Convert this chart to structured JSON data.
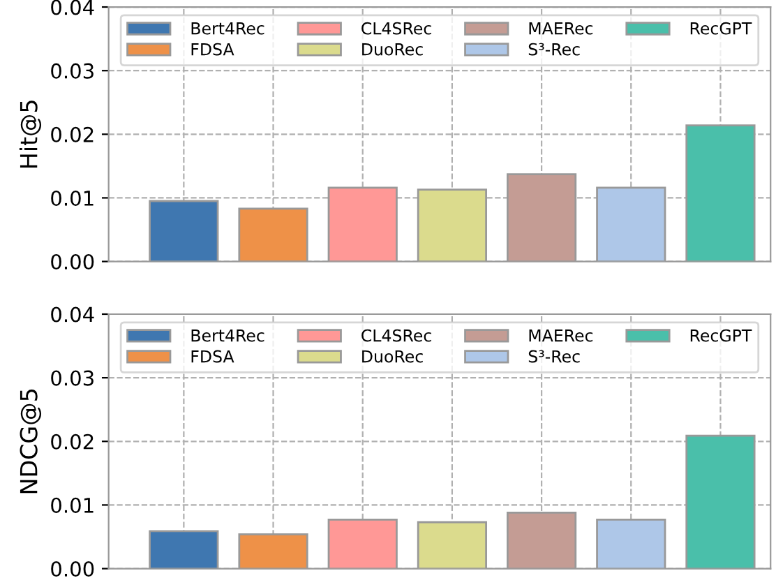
{
  "chart_data": [
    {
      "type": "bar",
      "ylabel": "Hit@5",
      "categories": [
        null,
        null,
        null,
        null,
        null,
        null,
        null
      ],
      "series": [
        {
          "name": "Bert4Rec",
          "color": "#3f77b0",
          "values": [
            0.0095,
            null,
            null,
            null,
            null,
            null,
            null
          ]
        },
        {
          "name": "FDSA",
          "color": "#ee9148",
          "values": [
            null,
            0.0083,
            null,
            null,
            null,
            null,
            null
          ]
        },
        {
          "name": "CL4SRec",
          "color": "#ff9896",
          "values": [
            null,
            null,
            0.0116,
            null,
            null,
            null,
            null
          ]
        },
        {
          "name": "DuoRec",
          "color": "#dbdb8d",
          "values": [
            null,
            null,
            null,
            0.0113,
            null,
            null,
            null
          ]
        },
        {
          "name": "MAERec",
          "color": "#c49c94",
          "values": [
            null,
            null,
            null,
            null,
            0.0137,
            null,
            null
          ]
        },
        {
          "name": "S³-Rec",
          "color": "#aec7e8",
          "values": [
            null,
            null,
            null,
            null,
            null,
            0.0116,
            null
          ]
        },
        {
          "name": "RecGPT",
          "color": "#4abfaa",
          "values": [
            null,
            null,
            null,
            null,
            null,
            null,
            0.0214
          ]
        }
      ],
      "ylim": [
        0,
        0.04
      ],
      "yticks": [
        {
          "value": 0,
          "label": "0.00"
        },
        0.01,
        0.02,
        0.03,
        0.04
      ],
      "grid": true,
      "legend": "top",
      "tick_labels": "y"
    },
    {
      "type": "bar",
      "ylabel": "NDCG@5",
      "categories": [
        null,
        null,
        null,
        null,
        null,
        null,
        null
      ],
      "series": [
        {
          "name": "Bert4Rec",
          "color": "#3f77b0",
          "values": [
            0.0059,
            null,
            null,
            null,
            null,
            null,
            null
          ]
        },
        {
          "name": "FDSA",
          "color": "#ee9148",
          "values": [
            null,
            0.0054,
            null,
            null,
            null,
            null,
            null
          ]
        },
        {
          "name": "CL4SRec",
          "color": "#ff9896",
          "values": [
            null,
            null,
            0.0077,
            null,
            null,
            null,
            null
          ]
        },
        {
          "name": "DuoRec",
          "color": "#dbdb8d",
          "values": [
            null,
            null,
            null,
            0.0073,
            null,
            null,
            null
          ]
        },
        {
          "name": "MAERec",
          "color": "#c49c94",
          "values": [
            null,
            null,
            null,
            null,
            0.0088,
            null,
            null
          ]
        },
        {
          "name": "S³-Rec",
          "color": "#aec7e8",
          "values": [
            null,
            null,
            null,
            null,
            null,
            0.0077,
            null
          ]
        },
        {
          "name": "RecGPT",
          "color": "#4abfaa",
          "values": [
            null,
            null,
            null,
            null,
            null,
            null,
            0.0209
          ]
        }
      ],
      "ylim": [
        0,
        0.04
      ],
      "yticks": [
        {
          "value": 0,
          "label": "0.00"
        },
        0.01,
        0.02,
        0.03,
        0.04
      ],
      "grid": true,
      "legend": "top",
      "tick_labels": "y"
    }
  ]
}
